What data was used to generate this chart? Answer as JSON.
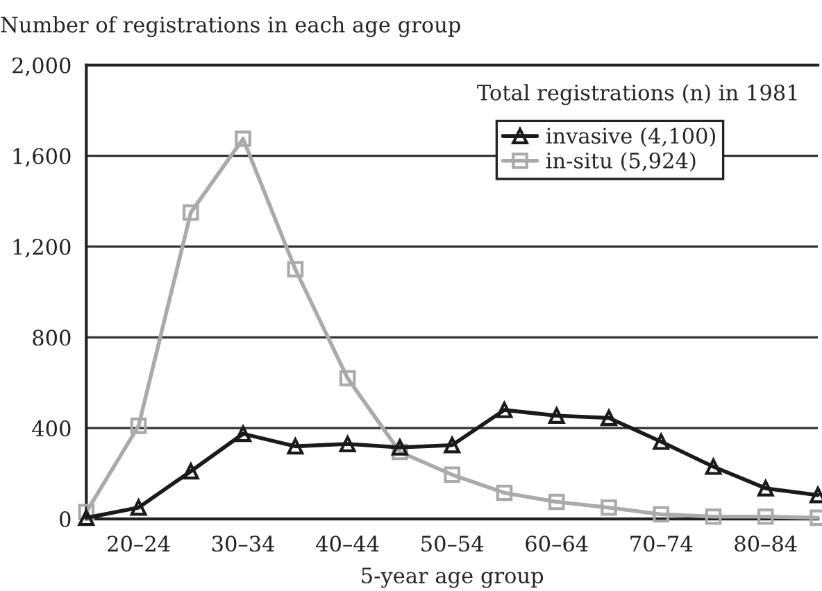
{
  "chart_data": {
    "type": "line",
    "ylabel": "Number of registrations in each age group",
    "xlabel": "5-year age group",
    "legend_title": "Total registrations (n) in 1981",
    "categories": [
      null,
      "20–24",
      null,
      "30–34",
      null,
      "40–44",
      null,
      "50–54",
      null,
      "60–64",
      null,
      "70–74",
      null,
      "80–84",
      null
    ],
    "series": [
      {
        "name": "invasive (4,100)",
        "color": "#1a1a1a",
        "marker": "triangle",
        "values": [
          5,
          50,
          210,
          375,
          320,
          330,
          315,
          325,
          480,
          455,
          445,
          340,
          230,
          135,
          105
        ]
      },
      {
        "name": "in-situ (5,924)",
        "color": "#aaaaaa",
        "marker": "square",
        "values": [
          30,
          410,
          1350,
          1675,
          1100,
          620,
          295,
          195,
          115,
          75,
          50,
          20,
          10,
          10,
          5
        ]
      }
    ],
    "ylim": [
      0,
      2000
    ],
    "yticks": [
      0,
      400,
      800,
      {
        "value": 1200,
        "label": "1,200"
      },
      {
        "value": 1600,
        "label": "1,600"
      },
      {
        "value": 2000,
        "label": "2,000"
      }
    ],
    "grid": "y",
    "legend": "top right",
    "line_style": "solid"
  }
}
